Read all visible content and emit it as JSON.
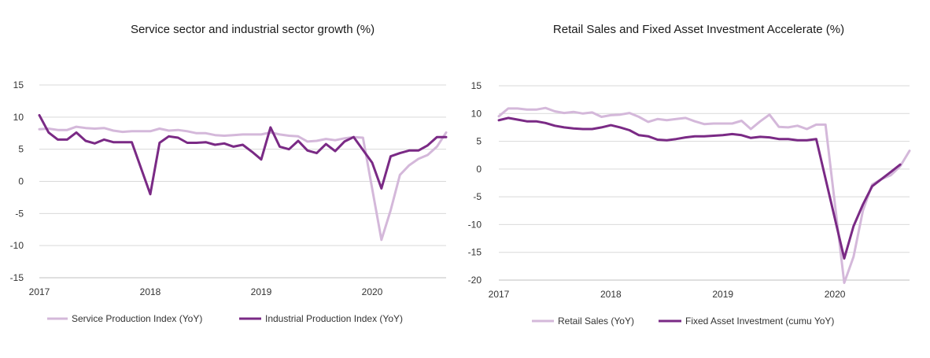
{
  "chart_data": [
    {
      "type": "line",
      "title": "Service sector and industrial sector growth (%)",
      "xlabel": "",
      "ylabel": "",
      "xlim": [
        "2017-01",
        "2020-09"
      ],
      "ylim": [
        -15,
        15
      ],
      "y_ticks": [
        15,
        10,
        5,
        0,
        -5,
        -10,
        -15
      ],
      "x_ticks": [
        {
          "label": "2017",
          "value": "2017-01"
        },
        {
          "label": "2018",
          "value": "2018-01"
        },
        {
          "label": "2019",
          "value": "2019-01"
        },
        {
          "label": "2020",
          "value": "2020-01"
        }
      ],
      "grid": "horizontal",
      "legend_position": "bottom",
      "series": [
        {
          "name": "Service Production Index (YoY)",
          "color": "#d4b8da",
          "points": [
            [
              "2017-01",
              8.1
            ],
            [
              "2017-02",
              8.2
            ],
            [
              "2017-03",
              8.0
            ],
            [
              "2017-04",
              8.0
            ],
            [
              "2017-05",
              8.5
            ],
            [
              "2017-06",
              8.3
            ],
            [
              "2017-07",
              8.2
            ],
            [
              "2017-08",
              8.3
            ],
            [
              "2017-09",
              7.9
            ],
            [
              "2017-10",
              7.7
            ],
            [
              "2017-11",
              7.8
            ],
            [
              "2017-12",
              7.8
            ],
            [
              "2018-01",
              7.8
            ],
            [
              "2018-02",
              8.2
            ],
            [
              "2018-03",
              7.9
            ],
            [
              "2018-04",
              8.0
            ],
            [
              "2018-05",
              7.8
            ],
            [
              "2018-06",
              7.5
            ],
            [
              "2018-07",
              7.5
            ],
            [
              "2018-08",
              7.2
            ],
            [
              "2018-09",
              7.1
            ],
            [
              "2018-10",
              7.2
            ],
            [
              "2018-11",
              7.3
            ],
            [
              "2018-12",
              7.3
            ],
            [
              "2019-01",
              7.3
            ],
            [
              "2019-02",
              7.6
            ],
            [
              "2019-03",
              7.3
            ],
            [
              "2019-04",
              7.1
            ],
            [
              "2019-05",
              7.0
            ],
            [
              "2019-06",
              6.2
            ],
            [
              "2019-07",
              6.3
            ],
            [
              "2019-08",
              6.6
            ],
            [
              "2019-09",
              6.4
            ],
            [
              "2019-10",
              6.7
            ],
            [
              "2019-11",
              6.9
            ],
            [
              "2019-12",
              6.8
            ],
            [
              "2020-02",
              -9.1
            ],
            [
              "2020-03",
              -4.5
            ],
            [
              "2020-04",
              1.0
            ],
            [
              "2020-05",
              2.5
            ],
            [
              "2020-06",
              3.5
            ],
            [
              "2020-07",
              4.1
            ],
            [
              "2020-08",
              5.4
            ],
            [
              "2020-09",
              7.6
            ]
          ]
        },
        {
          "name": "Industrial Production Index (YoY)",
          "color": "#7a2a85",
          "points": [
            [
              "2017-01",
              10.3
            ],
            [
              "2017-02",
              7.6
            ],
            [
              "2017-03",
              6.5
            ],
            [
              "2017-04",
              6.5
            ],
            [
              "2017-05",
              7.6
            ],
            [
              "2017-06",
              6.3
            ],
            [
              "2017-07",
              5.9
            ],
            [
              "2017-08",
              6.5
            ],
            [
              "2017-09",
              6.1
            ],
            [
              "2017-10",
              6.1
            ],
            [
              "2017-11",
              6.1
            ],
            [
              "2018-01",
              -2.0
            ],
            [
              "2018-02",
              6.0
            ],
            [
              "2018-03",
              7.0
            ],
            [
              "2018-04",
              6.8
            ],
            [
              "2018-05",
              6.0
            ],
            [
              "2018-06",
              6.0
            ],
            [
              "2018-07",
              6.1
            ],
            [
              "2018-08",
              5.7
            ],
            [
              "2018-09",
              5.9
            ],
            [
              "2018-10",
              5.4
            ],
            [
              "2018-11",
              5.7
            ],
            [
              "2018-12",
              4.6
            ],
            [
              "2019-01",
              3.4
            ],
            [
              "2019-02",
              8.4
            ],
            [
              "2019-03",
              5.4
            ],
            [
              "2019-04",
              5.0
            ],
            [
              "2019-05",
              6.3
            ],
            [
              "2019-06",
              4.8
            ],
            [
              "2019-07",
              4.4
            ],
            [
              "2019-08",
              5.8
            ],
            [
              "2019-09",
              4.7
            ],
            [
              "2019-10",
              6.2
            ],
            [
              "2019-11",
              6.9
            ],
            [
              "2020-01",
              2.9
            ],
            [
              "2020-02",
              -1.1
            ],
            [
              "2020-03",
              3.9
            ],
            [
              "2020-04",
              4.4
            ],
            [
              "2020-05",
              4.8
            ],
            [
              "2020-06",
              4.8
            ],
            [
              "2020-07",
              5.6
            ],
            [
              "2020-08",
              6.9
            ],
            [
              "2020-09",
              6.9
            ]
          ]
        }
      ]
    },
    {
      "type": "line",
      "title": "Retail Sales and Fixed Asset Investment Accelerate (%)",
      "xlabel": "",
      "ylabel": "",
      "xlim": [
        "2017-01",
        "2020-09"
      ],
      "ylim": [
        -20,
        15
      ],
      "y_ticks": [
        15,
        10,
        5,
        0,
        -5,
        -10,
        -15,
        -20
      ],
      "x_ticks": [
        {
          "label": "2017",
          "value": "2017-01"
        },
        {
          "label": "2018",
          "value": "2018-01"
        },
        {
          "label": "2019",
          "value": "2019-01"
        },
        {
          "label": "2020",
          "value": "2020-01"
        }
      ],
      "grid": "horizontal",
      "legend_position": "bottom",
      "series": [
        {
          "name": "Retail Sales (YoY)",
          "color": "#d4b8da",
          "points": [
            [
              "2017-01",
              9.5
            ],
            [
              "2017-02",
              10.9
            ],
            [
              "2017-03",
              10.9
            ],
            [
              "2017-04",
              10.7
            ],
            [
              "2017-05",
              10.7
            ],
            [
              "2017-06",
              11.0
            ],
            [
              "2017-07",
              10.4
            ],
            [
              "2017-08",
              10.1
            ],
            [
              "2017-09",
              10.3
            ],
            [
              "2017-10",
              10.0
            ],
            [
              "2017-11",
              10.2
            ],
            [
              "2017-12",
              9.4
            ],
            [
              "2018-01",
              9.7
            ],
            [
              "2018-02",
              9.8
            ],
            [
              "2018-03",
              10.1
            ],
            [
              "2018-04",
              9.4
            ],
            [
              "2018-05",
              8.5
            ],
            [
              "2018-06",
              9.0
            ],
            [
              "2018-07",
              8.8
            ],
            [
              "2018-08",
              9.0
            ],
            [
              "2018-09",
              9.2
            ],
            [
              "2018-10",
              8.6
            ],
            [
              "2018-11",
              8.1
            ],
            [
              "2018-12",
              8.2
            ],
            [
              "2019-01",
              8.2
            ],
            [
              "2019-02",
              8.2
            ],
            [
              "2019-03",
              8.7
            ],
            [
              "2019-04",
              7.2
            ],
            [
              "2019-05",
              8.6
            ],
            [
              "2019-06",
              9.8
            ],
            [
              "2019-07",
              7.6
            ],
            [
              "2019-08",
              7.5
            ],
            [
              "2019-09",
              7.8
            ],
            [
              "2019-10",
              7.2
            ],
            [
              "2019-11",
              8.0
            ],
            [
              "2019-12",
              8.0
            ],
            [
              "2020-02",
              -20.5
            ],
            [
              "2020-03",
              -15.8
            ],
            [
              "2020-04",
              -7.5
            ],
            [
              "2020-05",
              -2.8
            ],
            [
              "2020-06",
              -1.8
            ],
            [
              "2020-07",
              -1.1
            ],
            [
              "2020-08",
              0.5
            ],
            [
              "2020-09",
              3.3
            ]
          ]
        },
        {
          "name": "Fixed Asset Investment (cumu YoY)",
          "color": "#7a2a85",
          "points": [
            [
              "2017-01",
              8.8
            ],
            [
              "2017-02",
              9.2
            ],
            [
              "2017-03",
              8.9
            ],
            [
              "2017-04",
              8.6
            ],
            [
              "2017-05",
              8.6
            ],
            [
              "2017-06",
              8.3
            ],
            [
              "2017-07",
              7.8
            ],
            [
              "2017-08",
              7.5
            ],
            [
              "2017-09",
              7.3
            ],
            [
              "2017-10",
              7.2
            ],
            [
              "2017-11",
              7.2
            ],
            [
              "2017-12",
              7.5
            ],
            [
              "2018-01",
              7.9
            ],
            [
              "2018-02",
              7.5
            ],
            [
              "2018-03",
              7.0
            ],
            [
              "2018-04",
              6.1
            ],
            [
              "2018-05",
              5.9
            ],
            [
              "2018-06",
              5.3
            ],
            [
              "2018-07",
              5.2
            ],
            [
              "2018-08",
              5.4
            ],
            [
              "2018-09",
              5.7
            ],
            [
              "2018-10",
              5.9
            ],
            [
              "2018-11",
              5.9
            ],
            [
              "2018-12",
              6.0
            ],
            [
              "2019-01",
              6.1
            ],
            [
              "2019-02",
              6.3
            ],
            [
              "2019-03",
              6.1
            ],
            [
              "2019-04",
              5.6
            ],
            [
              "2019-05",
              5.8
            ],
            [
              "2019-06",
              5.7
            ],
            [
              "2019-07",
              5.4
            ],
            [
              "2019-08",
              5.4
            ],
            [
              "2019-09",
              5.2
            ],
            [
              "2019-10",
              5.2
            ],
            [
              "2019-11",
              5.4
            ],
            [
              "2020-02",
              -16.1
            ],
            [
              "2020-03",
              -10.3
            ],
            [
              "2020-04",
              -6.4
            ],
            [
              "2020-05",
              -3.1
            ],
            [
              "2020-06",
              -1.8
            ],
            [
              "2020-07",
              -0.5
            ],
            [
              "2020-08",
              0.8
            ]
          ]
        }
      ]
    }
  ]
}
